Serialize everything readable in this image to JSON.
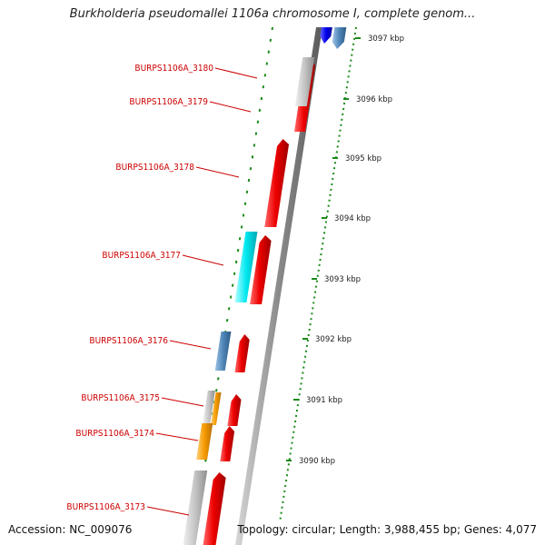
{
  "title": "Burkholderia pseudomallei 1106a chromosome I, complete genom...",
  "footer": {
    "accession": "Accession: NC_009076",
    "stats": "Topology: circular; Length: 3,988,455 bp; Genes: 4,077"
  },
  "scale_ticks": [
    "3097 kbp",
    "3096 kbp",
    "3095 kbp",
    "3094 kbp",
    "3093 kbp",
    "3092 kbp",
    "3091 kbp",
    "3090 kbp"
  ],
  "gene_labels": [
    "BURPS1106A_3180",
    "BURPS1106A_3179",
    "BURPS1106A_3178",
    "BURPS1106A_3177",
    "BURPS1106A_3176",
    "BURPS1106A_3175",
    "BURPS1106A_3174",
    "BURPS1106A_3173"
  ],
  "colors": {
    "forward_cds": "#ee0000",
    "reverse_grey": "#c0c0c0",
    "reverse_cyan": "#00e8f0",
    "reverse_blue": "#4f86b8",
    "reverse_orange": "#f59a00",
    "top_blue": "#0000ee",
    "label": "#cc0000",
    "ticks": "#1a8a1a",
    "backbone": "#8a8a8a"
  }
}
